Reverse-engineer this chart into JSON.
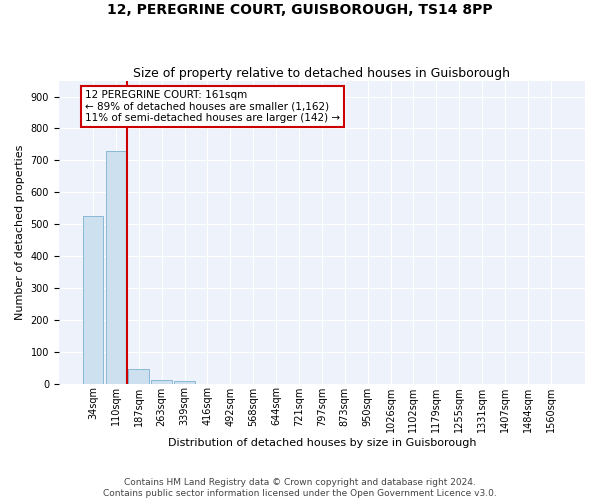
{
  "title": "12, PEREGRINE COURT, GUISBOROUGH, TS14 8PP",
  "subtitle": "Size of property relative to detached houses in Guisborough",
  "xlabel": "Distribution of detached houses by size in Guisborough",
  "ylabel": "Number of detached properties",
  "footer_line1": "Contains HM Land Registry data © Crown copyright and database right 2024.",
  "footer_line2": "Contains public sector information licensed under the Open Government Licence v3.0.",
  "categories": [
    "34sqm",
    "110sqm",
    "187sqm",
    "263sqm",
    "339sqm",
    "416sqm",
    "492sqm",
    "568sqm",
    "644sqm",
    "721sqm",
    "797sqm",
    "873sqm",
    "950sqm",
    "1026sqm",
    "1102sqm",
    "1179sqm",
    "1255sqm",
    "1331sqm",
    "1407sqm",
    "1484sqm",
    "1560sqm"
  ],
  "values": [
    525,
    728,
    47,
    12,
    7,
    0,
    0,
    0,
    0,
    0,
    0,
    0,
    0,
    0,
    0,
    0,
    0,
    0,
    0,
    0,
    0
  ],
  "bar_color": "#cce0f0",
  "bar_edge_color": "#8ab8d4",
  "red_line_color": "#cc0000",
  "annotation_box_color": "#cc0000",
  "annotation_text_line1": "12 PEREGRINE COURT: 161sqm",
  "annotation_text_line2": "← 89% of detached houses are smaller (1,162)",
  "annotation_text_line3": "11% of semi-detached houses are larger (142) →",
  "ylim": [
    0,
    950
  ],
  "yticks": [
    0,
    100,
    200,
    300,
    400,
    500,
    600,
    700,
    800,
    900
  ],
  "background_color": "#eef2fb",
  "grid_color": "#ffffff",
  "title_fontsize": 10,
  "subtitle_fontsize": 9,
  "axis_label_fontsize": 8,
  "tick_fontsize": 7,
  "annotation_fontsize": 7.5,
  "footer_fontsize": 6.5
}
